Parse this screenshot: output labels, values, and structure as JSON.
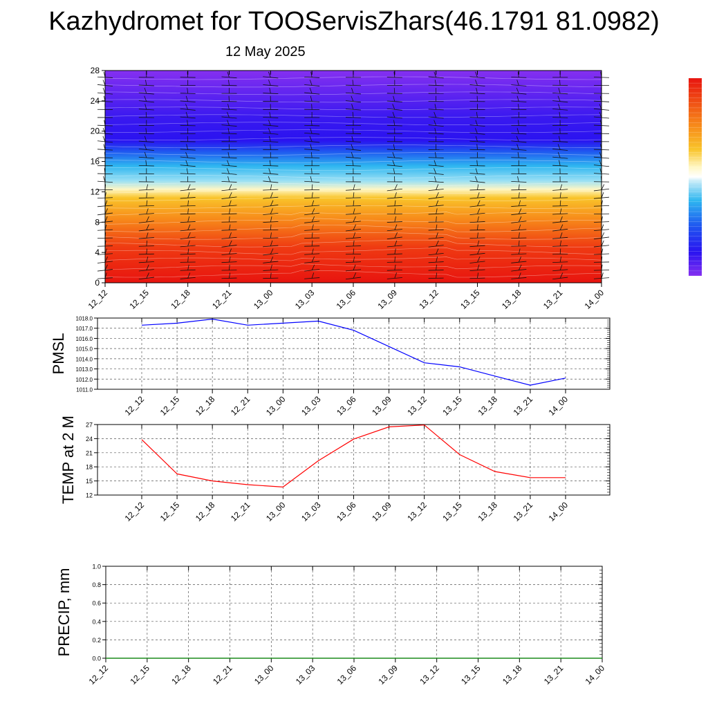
{
  "title": "Kazhydromet for TOOServisZhars(46.1791 81.0982)",
  "date": "12 May 2025",
  "chart_data": [
    {
      "type": "heatmap",
      "categories": [
        "12_12",
        "12_15",
        "12_18",
        "12_21",
        "13_00",
        "13_03",
        "13_06",
        "13_09",
        "13_12",
        "13_15",
        "13_18",
        "13_21",
        "14_00"
      ],
      "yticks": [
        0,
        4,
        8,
        12,
        16,
        20,
        24,
        28
      ],
      "ylim": [
        0,
        28
      ],
      "xlabel": "",
      "ylabel": "",
      "colors": {
        "warm": "#e8140f",
        "mid_warm": "#f9a31c",
        "neutral": "#fff7c4",
        "cool": "#2eb6f0",
        "cold": "#2a13f0",
        "top": "#8530f0"
      }
    },
    {
      "type": "line",
      "ylabel": "PMSL",
      "categories": [
        "12_12",
        "12_15",
        "12_18",
        "12_21",
        "13_00",
        "13_03",
        "13_06",
        "13_09",
        "13_12",
        "13_15",
        "13_18",
        "13_21",
        "14_00"
      ],
      "yticks": [
        "1011.0",
        "1012.0",
        "1013.0",
        "1014.0",
        "1015.0",
        "1016.0",
        "1017.0",
        "1018.0"
      ],
      "ylim": [
        1011,
        1018
      ],
      "series": [
        {
          "values": [
            1017.3,
            1017.5,
            1017.9,
            1017.3,
            1017.5,
            1017.7,
            1016.8,
            1015.2,
            1013.6,
            1013.2,
            1012.3,
            1011.4,
            1012.1
          ],
          "color": "#0000ff"
        }
      ]
    },
    {
      "type": "line",
      "ylabel": "TEMP at 2 M",
      "categories": [
        "12_12",
        "12_15",
        "12_18",
        "12_21",
        "13_00",
        "13_03",
        "13_06",
        "13_09",
        "13_12",
        "13_15",
        "13_18",
        "13_21",
        "14_00"
      ],
      "yticks": [
        "12",
        "15",
        "18",
        "21",
        "24",
        "27"
      ],
      "ylim": [
        12,
        27
      ],
      "series": [
        {
          "values": [
            23.8,
            16.5,
            15.0,
            14.2,
            13.7,
            19.3,
            23.9,
            26.5,
            26.9,
            20.6,
            17.0,
            15.7,
            15.7
          ],
          "color": "#ff0000"
        }
      ]
    },
    {
      "type": "line",
      "ylabel": "PRECIP, mm",
      "categories": [
        "12_12",
        "12_15",
        "12_18",
        "12_21",
        "13_00",
        "13_03",
        "13_06",
        "13_09",
        "13_12",
        "13_15",
        "13_18",
        "13_21",
        "14_00"
      ],
      "yticks": [
        "0.0",
        "0.2",
        "0.4",
        "0.6",
        "0.8",
        "1.0"
      ],
      "ylim": [
        0,
        1
      ],
      "series": [
        {
          "values": [
            0,
            0,
            0,
            0,
            0,
            0,
            0,
            0,
            0,
            0,
            0,
            0,
            0
          ],
          "color": "#1a8a1a"
        }
      ]
    }
  ]
}
